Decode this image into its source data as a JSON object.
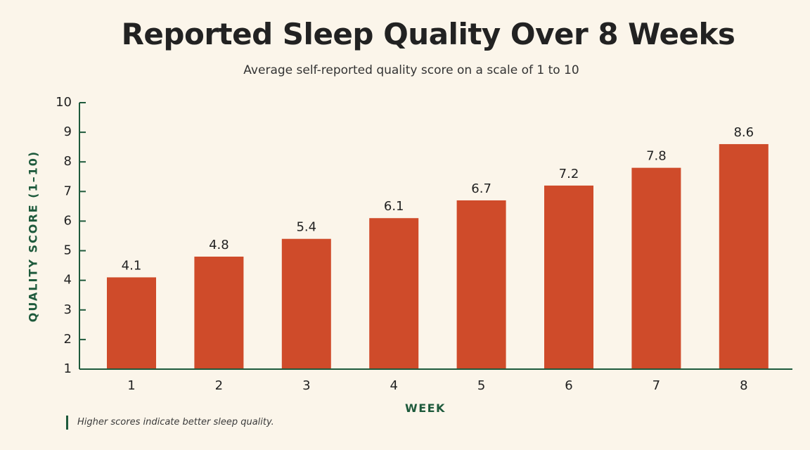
{
  "chart_data": {
    "type": "bar",
    "title": "Reported Sleep Quality Over 8 Weeks",
    "subtitle": "Average self-reported quality score on a scale of 1 to 10",
    "xlabel": "WEEK",
    "ylabel": "QUALITY SCORE (1–10)",
    "categories": [
      "1",
      "2",
      "3",
      "4",
      "5",
      "6",
      "7",
      "8"
    ],
    "values": [
      4.1,
      4.8,
      5.4,
      6.1,
      6.7,
      7.2,
      7.8,
      8.6
    ],
    "ylim": [
      1,
      10
    ],
    "yticks": [
      1,
      2,
      3,
      4,
      5,
      6,
      7,
      8,
      9,
      10
    ],
    "grid": false,
    "bar_color": "#cf4b2a",
    "axis_color": "#1e5a3c",
    "footnote": "Higher scores indicate better sleep quality."
  }
}
